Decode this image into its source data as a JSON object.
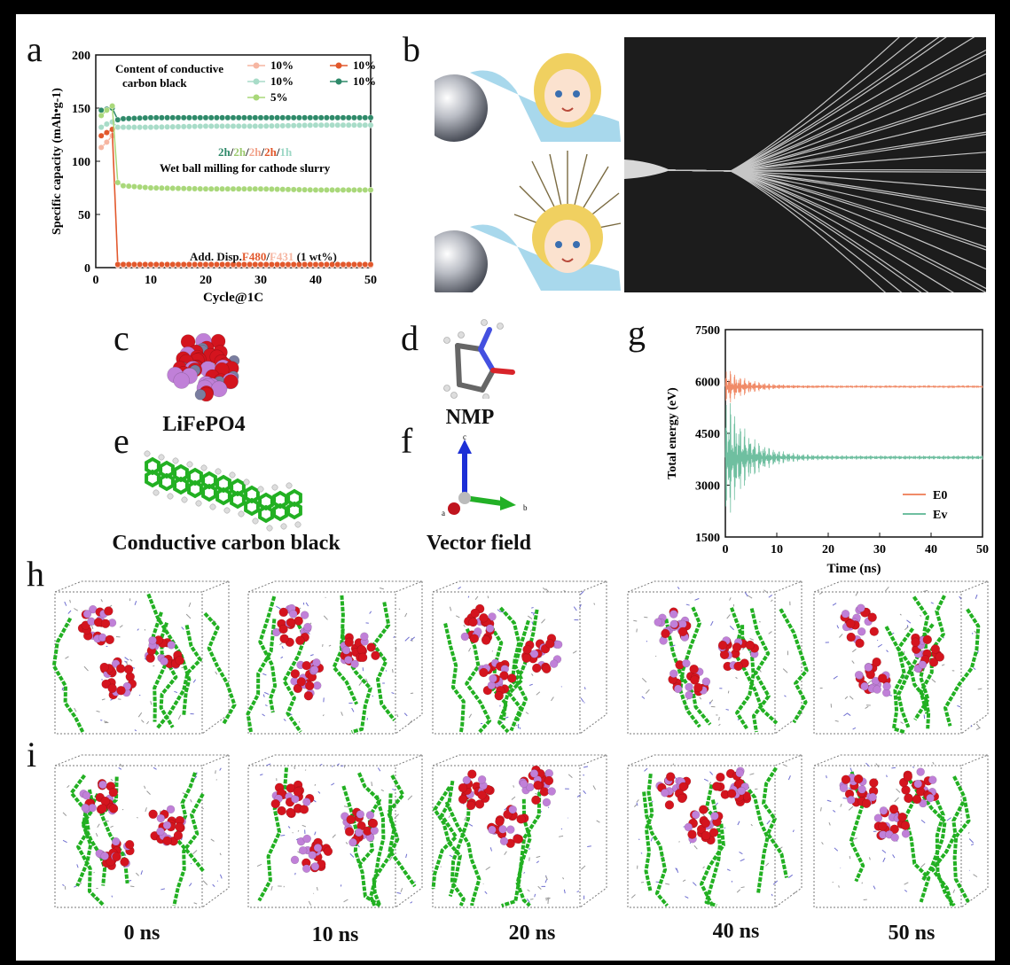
{
  "panel_labels": {
    "a": "a",
    "b": "b",
    "c": "c",
    "d": "d",
    "e": "e",
    "f": "f",
    "g": "g",
    "h": "h",
    "i": "i"
  },
  "captions": {
    "c": "LiFePO4",
    "d": "NMP",
    "e": "Conductive carbon black",
    "f": "Vector field"
  },
  "vector_axes": {
    "c": "c",
    "b": "b",
    "a": "a"
  },
  "time_labels": [
    "0 ns",
    "10 ns",
    "20 ns",
    "40 ns",
    "50 ns"
  ],
  "colors": {
    "background": "#000000",
    "panel_bg": "#ffffff",
    "carbon_green": "#22b022",
    "iron_red": "#d4141e",
    "lithium_violet": "#c080d8",
    "e0_line": "#f08b68",
    "ev_line": "#6fbfa0"
  },
  "chart_data": [
    {
      "type": "scatter",
      "panel": "a",
      "xlabel": "Cycle@1C",
      "ylabel": "Specific capacity (mAh•g-1)",
      "xlim": [
        0,
        50
      ],
      "ylim": [
        0,
        200
      ],
      "xticks": [
        0,
        10,
        20,
        30,
        40,
        50
      ],
      "yticks": [
        0,
        50,
        100,
        150,
        200
      ],
      "legend_title": "Content of conductive carbon black",
      "legend_entries": [
        "10%",
        "10%",
        "10%",
        "10%",
        "5%"
      ],
      "annotation_milling_parts": [
        "2h",
        "2h",
        "2h",
        "2h",
        "1h"
      ],
      "annotation_milling_colors": [
        "#2f8a6a",
        "#9cc970",
        "#f2a48c",
        "#e2582c",
        "#9ed8c6"
      ],
      "annotation_milling_text": "Wet ball milling for cathode slurry",
      "annotation_disp_prefix": "Add. Disp.",
      "annotation_disp_f480": "F480",
      "annotation_disp_f431": "F431",
      "annotation_disp_suffix": "(1 wt%)",
      "series": [
        {
          "color": "#f6b6a2",
          "points": [
            [
              1,
              113
            ],
            [
              2,
              118
            ],
            [
              3,
              124
            ],
            [
              4,
              2
            ],
            [
              5,
              2
            ],
            [
              10,
              2
            ],
            [
              20,
              2
            ],
            [
              30,
              2
            ],
            [
              40,
              2
            ],
            [
              50,
              2
            ]
          ]
        },
        {
          "color": "#e2582c",
          "points": [
            [
              1,
              124
            ],
            [
              2,
              127
            ],
            [
              3,
              130
            ],
            [
              4,
              3
            ],
            [
              5,
              3
            ],
            [
              10,
              3
            ],
            [
              20,
              3
            ],
            [
              30,
              3
            ],
            [
              40,
              3
            ],
            [
              50,
              3
            ]
          ]
        },
        {
          "color": "#a8dcc8",
          "points": [
            [
              1,
              132
            ],
            [
              2,
              135
            ],
            [
              3,
              137
            ],
            [
              4,
              132
            ],
            [
              5,
              132
            ],
            [
              10,
              132
            ],
            [
              20,
              133
            ],
            [
              30,
              133
            ],
            [
              40,
              134
            ],
            [
              50,
              134
            ]
          ]
        },
        {
          "color": "#2f8a6a",
          "points": [
            [
              1,
              148
            ],
            [
              2,
              149
            ],
            [
              3,
              150
            ],
            [
              4,
              139
            ],
            [
              5,
              140
            ],
            [
              10,
              141
            ],
            [
              20,
              141
            ],
            [
              30,
              141
            ],
            [
              40,
              141
            ],
            [
              50,
              141
            ]
          ]
        },
        {
          "color": "#a9d87a",
          "points": [
            [
              1,
              143
            ],
            [
              2,
              148
            ],
            [
              3,
              152
            ],
            [
              4,
              80
            ],
            [
              5,
              77
            ],
            [
              10,
              75
            ],
            [
              20,
              74
            ],
            [
              30,
              74
            ],
            [
              40,
              73
            ],
            [
              50,
              73
            ]
          ]
        }
      ]
    },
    {
      "type": "line",
      "panel": "g",
      "xlabel": "Time (ns)",
      "ylabel": "Total energy (eV)",
      "xlim": [
        0,
        50
      ],
      "ylim": [
        1500,
        7500
      ],
      "xticks": [
        0,
        10,
        20,
        30,
        40,
        50
      ],
      "yticks": [
        1500,
        3000,
        4500,
        6000,
        7500
      ],
      "series": [
        {
          "name": "E0",
          "color": "#f08b68",
          "base": 5850,
          "amp0": 600,
          "decay": 4,
          "final_amp": 30
        },
        {
          "name": "Ev",
          "color": "#6fbfa0",
          "base": 3800,
          "amp0": 2100,
          "decay": 4,
          "final_amp": 60
        }
      ]
    }
  ]
}
